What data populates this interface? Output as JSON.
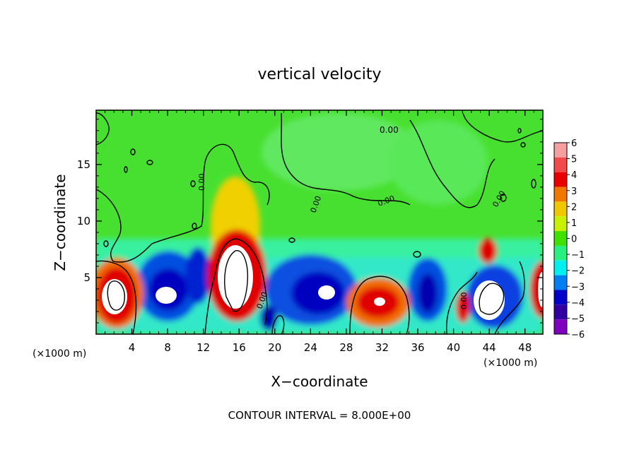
{
  "chart_data": {
    "type": "heatmap",
    "title": "vertical velocity",
    "xlabel": "X−coordinate",
    "ylabel": "Z−coordinate",
    "x_unit": "(×1000 m)",
    "y_unit": "(×1000 m)",
    "footer": "CONTOUR INTERVAL = 8.000E+00",
    "xlim": [
      0,
      50
    ],
    "ylim": [
      0,
      19.8
    ],
    "x_ticks": [
      4,
      8,
      12,
      16,
      20,
      24,
      28,
      32,
      36,
      40,
      44,
      48
    ],
    "y_ticks": [
      5,
      10,
      15
    ],
    "contour_label": "0.00",
    "colorbar": {
      "levels": [
        6,
        5,
        4,
        3,
        2,
        1,
        0,
        -1,
        -2,
        -3,
        -4,
        -5,
        -6
      ],
      "colors": [
        "#f4a0a0",
        "#f04a4a",
        "#e80000",
        "#f07800",
        "#f0c800",
        "#c8f000",
        "#40e000",
        "#28f080",
        "#00f0f0",
        "#0080f0",
        "#0000c8",
        "#3000a0",
        "#8000c0"
      ],
      "labels": [
        "6",
        "5",
        "4",
        "3",
        "2",
        "1",
        "0",
        "−1",
        "−2",
        "−3",
        "−4",
        "−5",
        "−6"
      ]
    },
    "features": [
      {
        "kind": "updraft",
        "x": 2,
        "z": 2.5
      },
      {
        "kind": "downdraft",
        "x": 7,
        "z": 3.5
      },
      {
        "kind": "downdraft",
        "x": 10,
        "z": 3
      },
      {
        "kind": "updraft",
        "x": 15.5,
        "z": 5
      },
      {
        "kind": "downdraft",
        "x": 19,
        "z": 1
      },
      {
        "kind": "downdraft",
        "x": 24,
        "z": 3.5
      },
      {
        "kind": "updraft",
        "x": 31.5,
        "z": 3
      },
      {
        "kind": "downdraft",
        "x": 38,
        "z": 3
      },
      {
        "kind": "updraft",
        "x": 40.8,
        "z": 2.5
      },
      {
        "kind": "updraft",
        "x": 43.7,
        "z": 7.5
      },
      {
        "kind": "downdraft",
        "x": 44,
        "z": 3
      },
      {
        "kind": "updraft",
        "x": 49.5,
        "z": 4
      }
    ]
  }
}
